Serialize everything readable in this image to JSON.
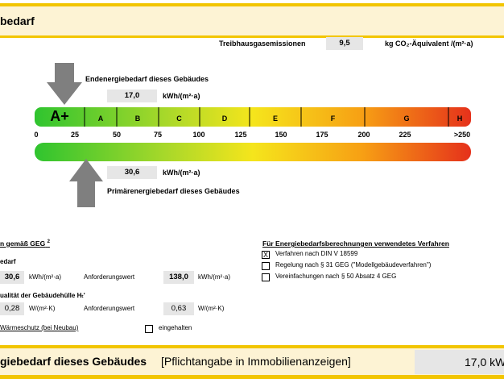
{
  "header": {
    "title": "bedarf"
  },
  "emissions": {
    "label": "Treibhausgasemissionen",
    "value": "9,5",
    "unit": "kg CO₂-Äquivalent /(m²·a)"
  },
  "end_energy": {
    "label": "Endenergiebedarf dieses Gebäudes",
    "value": "17,0",
    "unit": "kWh/(m²·a)"
  },
  "scale": {
    "classes": [
      "A+",
      "A",
      "B",
      "C",
      "D",
      "E",
      "F",
      "G",
      "H"
    ],
    "ticks": [
      "0",
      "25",
      "50",
      "75",
      "100",
      "125",
      "150",
      "175",
      "200",
      "225",
      ">250"
    ]
  },
  "primary_energy": {
    "label": "Primärenergiebedarf dieses Gebäudes",
    "value": "30,6",
    "unit": "kWh/(m²·a)"
  },
  "requirements": {
    "title": "n gemäß GEG",
    "title_note": "2",
    "primary": {
      "label": "edarf",
      "value": "30,6",
      "unit": "kWh/(m²·a)",
      "requirement_label": "Anforderungswert",
      "requirement_value": "138,0",
      "requirement_unit": "kWh/(m²·a)"
    },
    "envelope": {
      "label": "ualität der Gebäudehülle Hₜ'",
      "value": "0,28",
      "unit": "W/(m²·K)",
      "requirement_label": "Anforderungswert",
      "requirement_value": "0,63",
      "requirement_unit": "W/(m²·K)"
    },
    "insulation": {
      "label": "Wärmeschutz (bei Neubau)",
      "check_label": "eingehalten"
    }
  },
  "method": {
    "title": "Für Energiebedarfsberechnungen verwendetes Verfahren",
    "options": [
      {
        "label": "Verfahren nach DIN V 18599",
        "mark": "X"
      },
      {
        "label": "Regelung nach § 31 GEG (\"Modellgebäudeverfahren\")"
      },
      {
        "label": "Vereinfachungen nach § 50 Absatz 4 GEG"
      }
    ]
  },
  "footer": {
    "label": "giebedarf dieses Gebäudes",
    "note": "[Pflichtangabe in Immobilienanzeigen]",
    "value": "17,0 kW"
  }
}
